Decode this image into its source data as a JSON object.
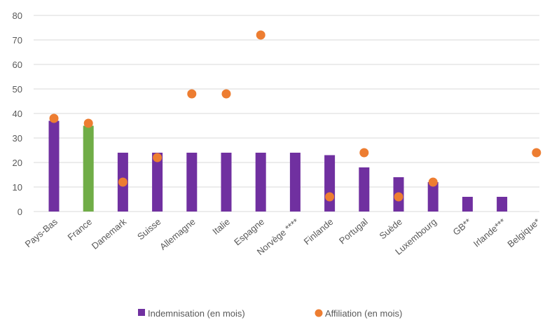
{
  "chart_data": {
    "type": "bar",
    "categories": [
      "Pays-Bas",
      "France",
      "Danemark",
      "Suisse",
      "Allemagne",
      "Italie",
      "Espagne",
      "Norvège ****",
      "Finlande",
      "Portugal",
      "Suède",
      "Luxembourg",
      "GB**",
      "Irlande***",
      "Belgique*"
    ],
    "series": [
      {
        "name": "Indemnisation (en mois)",
        "kind": "bar",
        "color": "#7030A0",
        "highlight": {
          "France": "#70AD47"
        },
        "values": [
          37,
          35,
          24,
          24,
          24,
          24,
          24,
          24,
          23,
          18,
          14,
          12,
          6,
          6,
          null
        ]
      },
      {
        "name": "Affiliation (en mois)",
        "kind": "scatter",
        "color": "#ED7D31",
        "values": [
          38,
          36,
          12,
          22,
          48,
          48,
          72,
          null,
          6,
          24,
          6,
          12,
          null,
          null,
          24
        ]
      }
    ],
    "ylim": [
      0,
      80
    ],
    "yticks": [
      "0",
      "10",
      "20",
      "30",
      "40",
      "50",
      "60",
      "70",
      "80"
    ],
    "grid": true,
    "legend": "bottom-center",
    "gridColor": "#D9D9D9"
  }
}
